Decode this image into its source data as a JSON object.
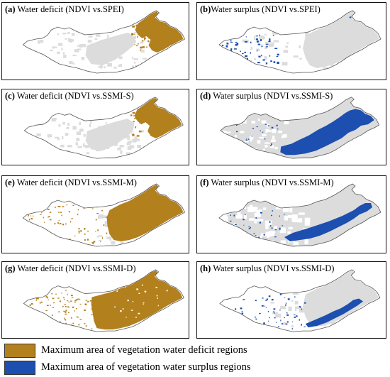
{
  "colors": {
    "deficit": "#B3801E",
    "surplus": "#1C4FB0",
    "land": "#DCDCDC",
    "white_region": "#FFFFFF",
    "outline": "#555555"
  },
  "panels": [
    {
      "tag": "(a)",
      "title": "Water deficit (NDVI vs.SPEI)",
      "kind": "deficit",
      "variant": "a"
    },
    {
      "tag": "(b)",
      "title": "Water surplus (NDVI vs.SPEI)",
      "kind": "surplus",
      "variant": "b"
    },
    {
      "tag": "(c)",
      "title": "Water deficit (NDVI vs.SSMI-S)",
      "kind": "deficit",
      "variant": "c"
    },
    {
      "tag": "(d)",
      "title": "Water surplus (NDVI vs.SSMI-S)",
      "kind": "surplus",
      "variant": "d"
    },
    {
      "tag": "(e)",
      "title": "Water deficit (NDVI vs.SSMI-M)",
      "kind": "deficit",
      "variant": "e"
    },
    {
      "tag": "(f)",
      "title": "Water surplus (NDVI vs.SSMI-M)",
      "kind": "surplus",
      "variant": "f"
    },
    {
      "tag": "(g)",
      "title": "Water deficit (NDVI vs.SSMI-D)",
      "kind": "deficit",
      "variant": "g"
    },
    {
      "tag": "(h)",
      "title": "Water surplus (NDVI vs.SSMI-D)",
      "kind": "surplus",
      "variant": "h"
    }
  ],
  "legend": [
    {
      "label": "Maximum area of vegetation water deficit regions",
      "color": "#B3801E"
    },
    {
      "label": "Maximum area of vegetation water surplus regions",
      "color": "#1C4FB0"
    }
  ]
}
